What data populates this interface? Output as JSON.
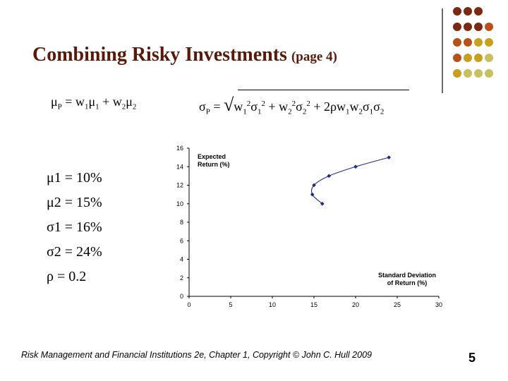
{
  "slide": {
    "title": "Combining Risky Investments",
    "subtitle": "(page 4)",
    "formula_mean": "μP = w1μ1 + w2μ2",
    "formula_sd": "σP = √(w1²σ1² + w2²σ2² + 2ρw1w2σ1σ2)",
    "params": [
      "μ1 = 10%",
      "μ2 = 15%",
      "σ1 = 16%",
      "σ2 = 24%",
      "ρ = 0.2"
    ],
    "footer": "Risk Management and Financial Institutions 2e,  Chapter 1, Copyright © John C. Hull 2009",
    "page_number": "5",
    "deco_colors": [
      "#7a2a10",
      "#b8501a",
      "#c8a020",
      "#c8c060"
    ]
  },
  "chart_data": {
    "type": "scatter",
    "series": [
      {
        "points": [
          [
            16,
            10
          ],
          [
            14.8,
            11
          ],
          [
            15.0,
            12
          ],
          [
            16.8,
            13
          ],
          [
            20.0,
            14
          ],
          [
            24.0,
            15
          ]
        ],
        "color": "#1f2e8a"
      }
    ],
    "xlabel": "Standard Deviation of Return (%)",
    "ylabel": "Expected Return (%)",
    "xlabel_lines": [
      "Standard Deviation",
      "of Return (%)"
    ],
    "ylabel_lines": [
      "Expected",
      "Return (%)"
    ],
    "xlim": [
      0,
      30
    ],
    "ylim": [
      0,
      16
    ],
    "xticks": [
      "0",
      "5",
      "10",
      "15",
      "20",
      "25",
      "30"
    ],
    "yticks": [
      "0",
      "2",
      "4",
      "6",
      "8",
      "10",
      "12",
      "14",
      "16"
    ],
    "grid": false
  }
}
